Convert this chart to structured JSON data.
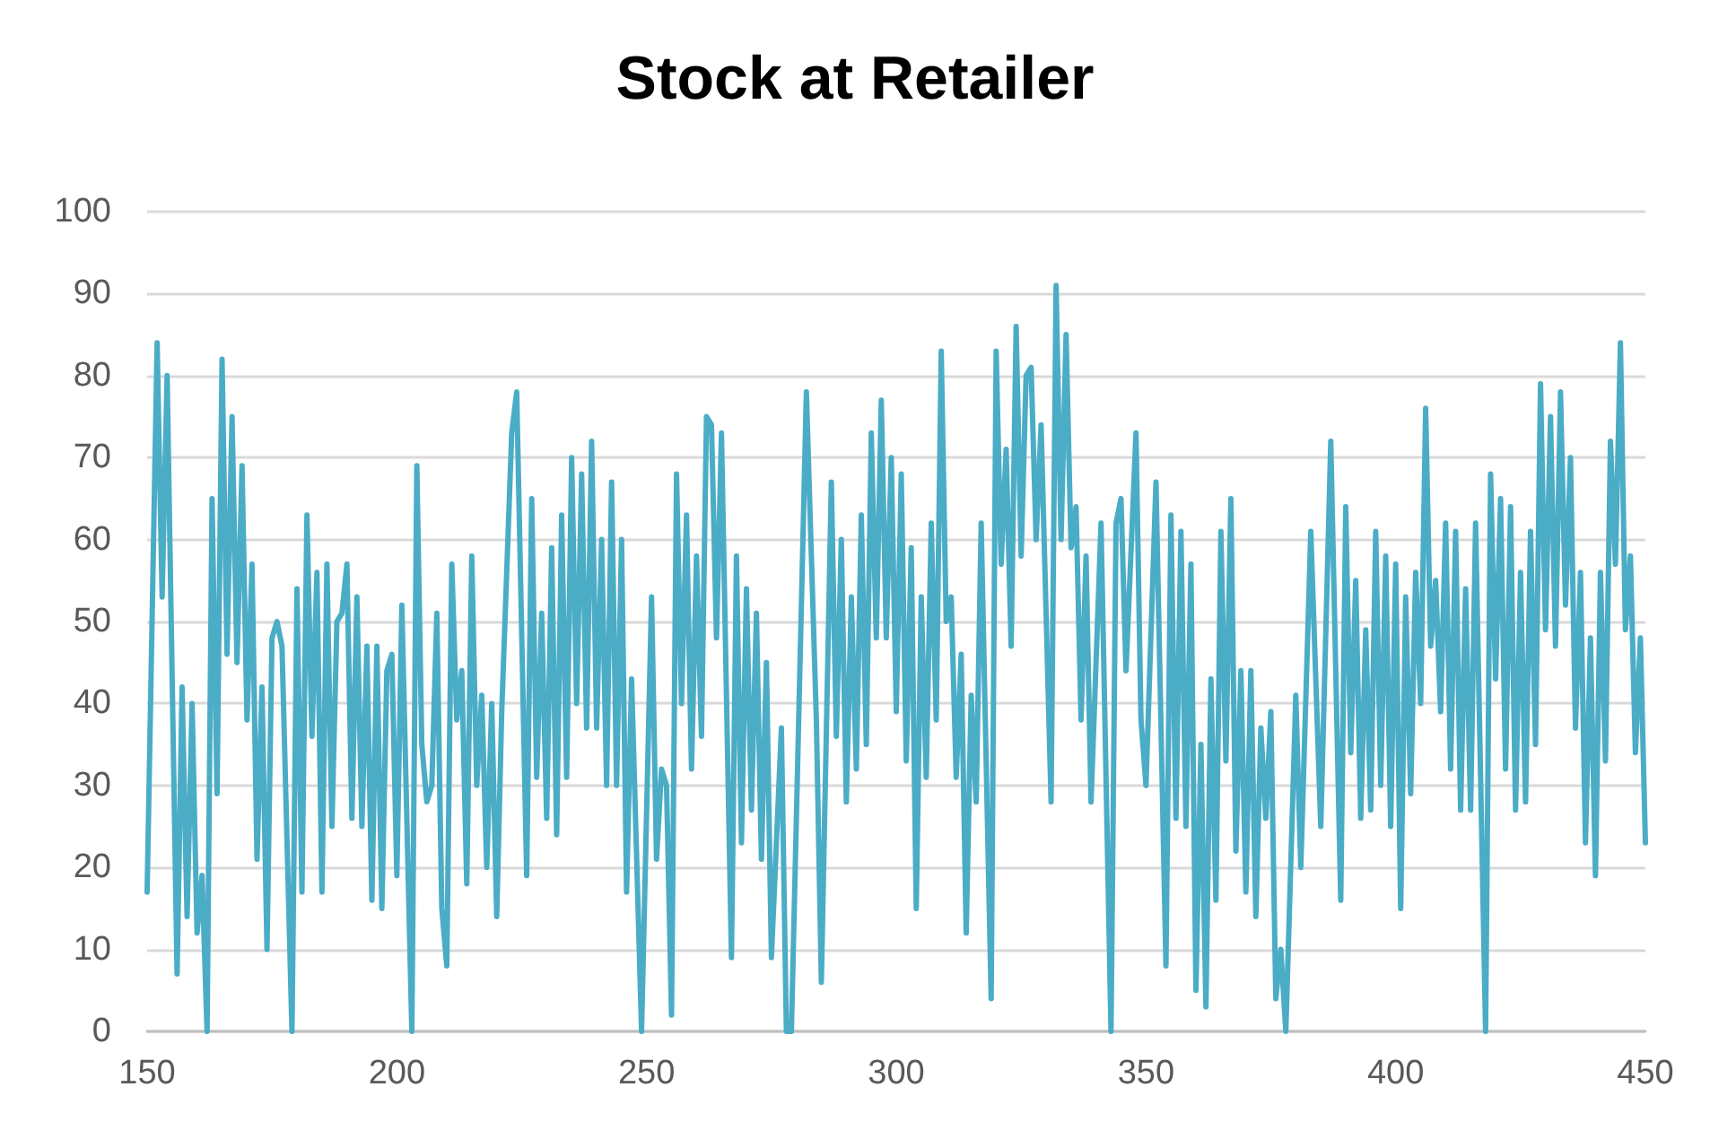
{
  "chart_data": {
    "type": "line",
    "title": "Stock at Retailer",
    "x": [
      150,
      152,
      153,
      154,
      156,
      157,
      158,
      159,
      160,
      161,
      162,
      163,
      164,
      165,
      166,
      167,
      168,
      169,
      170,
      171,
      172,
      173,
      174,
      175,
      176,
      177,
      179,
      180,
      181,
      182,
      183,
      184,
      185,
      186,
      187,
      188,
      189,
      190,
      191,
      192,
      193,
      194,
      195,
      196,
      197,
      198,
      199,
      200,
      201,
      203,
      204,
      205,
      206,
      207,
      208,
      209,
      210,
      211,
      212,
      213,
      214,
      215,
      216,
      217,
      218,
      219,
      220,
      221,
      223,
      224,
      226,
      227,
      228,
      229,
      230,
      231,
      232,
      233,
      234,
      235,
      236,
      237,
      238,
      239,
      240,
      241,
      242,
      243,
      244,
      245,
      246,
      247,
      249,
      251,
      252,
      253,
      254,
      255,
      256,
      257,
      258,
      259,
      260,
      261,
      262,
      263,
      264,
      265,
      267,
      268,
      269,
      270,
      271,
      272,
      273,
      274,
      275,
      277,
      278,
      279,
      282,
      284,
      285,
      287,
      288,
      289,
      290,
      291,
      292,
      293,
      294,
      295,
      296,
      297,
      298,
      299,
      300,
      301,
      302,
      303,
      304,
      305,
      306,
      307,
      308,
      309,
      310,
      311,
      312,
      313,
      314,
      315,
      316,
      317,
      319,
      320,
      321,
      322,
      323,
      324,
      325,
      326,
      327,
      328,
      329,
      331,
      332,
      333,
      334,
      335,
      336,
      337,
      338,
      339,
      341,
      343,
      344,
      345,
      346,
      348,
      349,
      350,
      352,
      354,
      355,
      356,
      357,
      358,
      359,
      360,
      361,
      362,
      363,
      364,
      365,
      366,
      367,
      368,
      369,
      370,
      371,
      372,
      373,
      374,
      375,
      376,
      377,
      378,
      380,
      381,
      383,
      385,
      387,
      389,
      390,
      391,
      392,
      393,
      394,
      395,
      396,
      397,
      398,
      399,
      400,
      401,
      402,
      403,
      404,
      405,
      406,
      407,
      408,
      409,
      410,
      411,
      412,
      413,
      414,
      415,
      416,
      418,
      419,
      420,
      421,
      422,
      423,
      424,
      425,
      426,
      427,
      428,
      429,
      430,
      431,
      432,
      433,
      434,
      435,
      436,
      437,
      438,
      439,
      440,
      441,
      442,
      443,
      444,
      445,
      446,
      447,
      448,
      449,
      450
    ],
    "values": [
      17,
      84,
      53,
      80,
      7,
      42,
      14,
      40,
      12,
      19,
      0,
      65,
      29,
      82,
      46,
      75,
      45,
      69,
      38,
      57,
      21,
      42,
      10,
      48,
      50,
      47,
      0,
      54,
      17,
      63,
      36,
      56,
      17,
      57,
      25,
      50,
      51,
      57,
      26,
      53,
      25,
      47,
      16,
      47,
      15,
      44,
      46,
      19,
      52,
      0,
      69,
      35,
      28,
      30,
      51,
      15,
      8,
      57,
      38,
      44,
      18,
      58,
      30,
      41,
      20,
      40,
      14,
      39,
      73,
      78,
      19,
      65,
      31,
      51,
      26,
      59,
      24,
      63,
      31,
      70,
      40,
      68,
      37,
      72,
      37,
      60,
      30,
      67,
      30,
      60,
      17,
      43,
      0,
      53,
      21,
      32,
      30,
      2,
      68,
      40,
      63,
      32,
      58,
      36,
      75,
      74,
      48,
      73,
      9,
      58,
      23,
      54,
      27,
      51,
      21,
      45,
      9,
      37,
      0,
      0,
      78,
      38,
      6,
      67,
      36,
      60,
      28,
      53,
      32,
      63,
      35,
      73,
      48,
      77,
      48,
      70,
      39,
      68,
      33,
      59,
      15,
      53,
      31,
      62,
      38,
      83,
      50,
      53,
      31,
      46,
      12,
      41,
      28,
      62,
      4,
      83,
      57,
      71,
      47,
      86,
      58,
      80,
      81,
      60,
      74,
      28,
      91,
      60,
      85,
      59,
      64,
      38,
      58,
      28,
      62,
      0,
      62,
      65,
      44,
      73,
      38,
      30,
      67,
      8,
      63,
      26,
      61,
      25,
      57,
      5,
      35,
      3,
      43,
      16,
      61,
      33,
      65,
      22,
      44,
      17,
      44,
      14,
      37,
      26,
      39,
      4,
      10,
      0,
      41,
      20,
      61,
      25,
      72,
      16,
      64,
      34,
      55,
      26,
      49,
      27,
      61,
      30,
      58,
      25,
      57,
      15,
      53,
      29,
      56,
      40,
      76,
      47,
      55,
      39,
      62,
      32,
      61,
      27,
      54,
      27,
      62,
      0,
      68,
      43,
      65,
      32,
      64,
      27,
      56,
      28,
      61,
      35,
      79,
      49,
      75,
      47,
      78,
      52,
      70,
      37,
      56,
      23,
      48,
      19,
      56,
      33,
      72,
      57,
      84,
      49,
      58,
      34,
      48,
      23
    ],
    "color": "#4bacc6",
    "marker": "none",
    "line_style": "solid",
    "xlim": [
      150,
      450
    ],
    "xticks": [
      150,
      200,
      250,
      300,
      350,
      400,
      450
    ],
    "ylim": [
      0,
      100
    ],
    "yticks": [
      0,
      10,
      20,
      30,
      40,
      50,
      60,
      70,
      80,
      90,
      100
    ],
    "grid": "y"
  }
}
